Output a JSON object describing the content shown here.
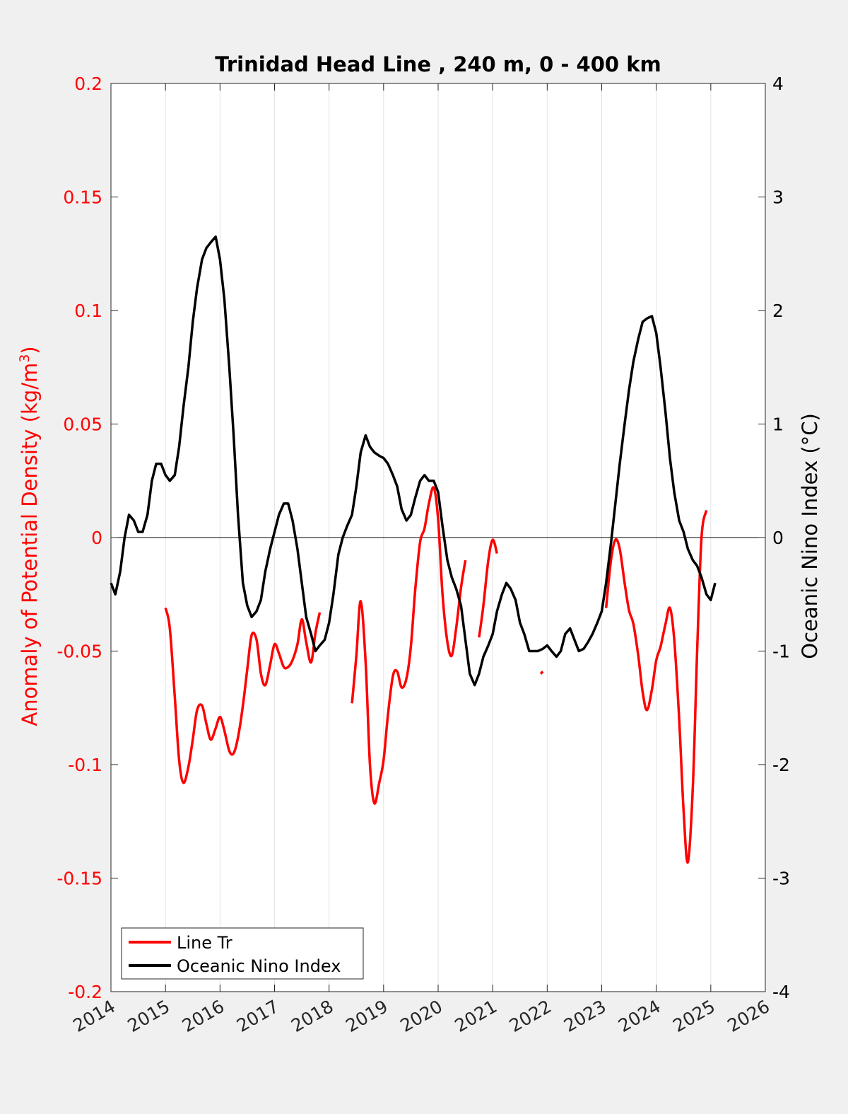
{
  "colors": {
    "left_axis": "#ff0000",
    "right_axis": "#000000",
    "line_tr": "#ff0000",
    "oni": "#000000",
    "grid": "#e3e3e3",
    "figure_background": "#f0f0f0",
    "axes_background": "#ffffff"
  },
  "chart_data": {
    "type": "line",
    "title": "Trinidad Head Line , 240 m, 0 - 400 km",
    "xlabel": "",
    "ylabel_left": "Anomaly of Potential Density (kg/m",
    "ylabel_left_sup": "3",
    "ylabel_left_close": ")",
    "ylabel_right": "Oceanic Nino Index (°C)",
    "xlim": [
      2014,
      2026
    ],
    "ylim_left": [
      -0.2,
      0.2
    ],
    "ylim_right": [
      -4,
      4
    ],
    "x_ticks": [
      2014,
      2015,
      2016,
      2017,
      2018,
      2019,
      2020,
      2021,
      2022,
      2023,
      2024,
      2025,
      2026
    ],
    "x_tick_labels": [
      "2014",
      "2015",
      "2016",
      "2017",
      "2018",
      "2019",
      "2020",
      "2021",
      "2022",
      "2023",
      "2024",
      "2025",
      "2026"
    ],
    "y_left_ticks": [
      0.2,
      0.15,
      0.1,
      0.05,
      0,
      -0.05,
      -0.1,
      -0.15,
      -0.2
    ],
    "y_left_tick_labels": [
      "0.2",
      "0.15",
      "0.1",
      "0.05",
      "0",
      "-0.05",
      "-0.1",
      "-0.15",
      "-0.2"
    ],
    "y_right_ticks": [
      4,
      3,
      2,
      1,
      0,
      -1,
      -2,
      -3,
      -4
    ],
    "y_right_tick_labels": [
      "4",
      "3",
      "2",
      "1",
      "0",
      "-1",
      "-2",
      "-3",
      "-4"
    ],
    "grid": "vertical",
    "zero_line": true,
    "legend_position": "bottom-left",
    "legend": [
      "Line Tr",
      "Oceanic Nino Index"
    ],
    "series": [
      {
        "name": "Line Tr",
        "axis": "left",
        "segments": [
          [
            [
              2015.0,
              -0.031
            ],
            [
              2015.08,
              -0.04
            ],
            [
              2015.17,
              -0.07
            ],
            [
              2015.25,
              -0.098
            ],
            [
              2015.33,
              -0.108
            ],
            [
              2015.42,
              -0.101
            ],
            [
              2015.5,
              -0.089
            ],
            [
              2015.58,
              -0.076
            ],
            [
              2015.67,
              -0.074
            ],
            [
              2015.75,
              -0.082
            ],
            [
              2015.83,
              -0.089
            ],
            [
              2015.92,
              -0.084
            ],
            [
              2016.0,
              -0.079
            ],
            [
              2016.08,
              -0.085
            ],
            [
              2016.17,
              -0.094
            ],
            [
              2016.25,
              -0.095
            ],
            [
              2016.33,
              -0.088
            ],
            [
              2016.42,
              -0.074
            ],
            [
              2016.5,
              -0.058
            ],
            [
              2016.58,
              -0.043
            ],
            [
              2016.67,
              -0.045
            ],
            [
              2016.75,
              -0.06
            ],
            [
              2016.83,
              -0.065
            ],
            [
              2016.92,
              -0.056
            ],
            [
              2017.0,
              -0.047
            ],
            [
              2017.08,
              -0.051
            ],
            [
              2017.17,
              -0.057
            ],
            [
              2017.25,
              -0.057
            ],
            [
              2017.33,
              -0.054
            ],
            [
              2017.42,
              -0.047
            ],
            [
              2017.5,
              -0.036
            ],
            [
              2017.58,
              -0.046
            ],
            [
              2017.67,
              -0.055
            ],
            [
              2017.75,
              -0.042
            ],
            [
              2017.83,
              -0.033
            ]
          ],
          [
            [
              2018.42,
              -0.073
            ],
            [
              2018.5,
              -0.052
            ],
            [
              2018.58,
              -0.028
            ],
            [
              2018.67,
              -0.055
            ],
            [
              2018.75,
              -0.1
            ],
            [
              2018.83,
              -0.117
            ],
            [
              2018.92,
              -0.108
            ],
            [
              2019.0,
              -0.098
            ],
            [
              2019.08,
              -0.078
            ],
            [
              2019.17,
              -0.061
            ],
            [
              2019.25,
              -0.059
            ],
            [
              2019.33,
              -0.066
            ],
            [
              2019.42,
              -0.062
            ],
            [
              2019.5,
              -0.048
            ],
            [
              2019.58,
              -0.023
            ],
            [
              2019.67,
              -0.002
            ],
            [
              2019.75,
              0.004
            ],
            [
              2019.83,
              0.015
            ],
            [
              2019.92,
              0.022
            ],
            [
              2020.0,
              0.008
            ],
            [
              2020.08,
              -0.025
            ],
            [
              2020.17,
              -0.046
            ],
            [
              2020.25,
              -0.052
            ],
            [
              2020.33,
              -0.04
            ],
            [
              2020.42,
              -0.022
            ],
            [
              2020.5,
              -0.01
            ]
          ],
          [
            [
              2020.75,
              -0.044
            ],
            [
              2020.83,
              -0.03
            ],
            [
              2020.92,
              -0.01
            ],
            [
              2021.0,
              -0.001
            ],
            [
              2021.08,
              -0.007
            ]
          ],
          [
            [
              2021.88,
              -0.06
            ],
            [
              2021.92,
              -0.059
            ]
          ],
          [
            [
              2023.08,
              -0.031
            ],
            [
              2023.17,
              -0.01
            ],
            [
              2023.25,
              -0.001
            ],
            [
              2023.33,
              -0.005
            ],
            [
              2023.42,
              -0.02
            ],
            [
              2023.5,
              -0.032
            ],
            [
              2023.58,
              -0.038
            ],
            [
              2023.67,
              -0.052
            ],
            [
              2023.75,
              -0.068
            ],
            [
              2023.83,
              -0.076
            ],
            [
              2023.92,
              -0.067
            ],
            [
              2024.0,
              -0.054
            ],
            [
              2024.08,
              -0.048
            ],
            [
              2024.17,
              -0.038
            ],
            [
              2024.25,
              -0.031
            ],
            [
              2024.33,
              -0.045
            ],
            [
              2024.42,
              -0.08
            ],
            [
              2024.5,
              -0.12
            ],
            [
              2024.58,
              -0.143
            ],
            [
              2024.67,
              -0.11
            ],
            [
              2024.75,
              -0.05
            ],
            [
              2024.83,
              0.0
            ],
            [
              2024.92,
              0.012
            ]
          ]
        ]
      },
      {
        "name": "Oceanic Nino Index",
        "axis": "right",
        "points": [
          [
            2014.0,
            -0.4
          ],
          [
            2014.08,
            -0.5
          ],
          [
            2014.17,
            -0.3
          ],
          [
            2014.25,
            0.0
          ],
          [
            2014.33,
            0.2
          ],
          [
            2014.42,
            0.15
          ],
          [
            2014.5,
            0.05
          ],
          [
            2014.58,
            0.05
          ],
          [
            2014.67,
            0.2
          ],
          [
            2014.75,
            0.5
          ],
          [
            2014.83,
            0.65
          ],
          [
            2014.92,
            0.65
          ],
          [
            2015.0,
            0.55
          ],
          [
            2015.08,
            0.5
          ],
          [
            2015.17,
            0.55
          ],
          [
            2015.25,
            0.8
          ],
          [
            2015.33,
            1.15
          ],
          [
            2015.42,
            1.5
          ],
          [
            2015.5,
            1.9
          ],
          [
            2015.58,
            2.2
          ],
          [
            2015.67,
            2.45
          ],
          [
            2015.75,
            2.55
          ],
          [
            2015.83,
            2.6
          ],
          [
            2015.92,
            2.65
          ],
          [
            2016.0,
            2.45
          ],
          [
            2016.08,
            2.1
          ],
          [
            2016.17,
            1.5
          ],
          [
            2016.25,
            0.9
          ],
          [
            2016.33,
            0.2
          ],
          [
            2016.42,
            -0.4
          ],
          [
            2016.5,
            -0.6
          ],
          [
            2016.58,
            -0.7
          ],
          [
            2016.67,
            -0.65
          ],
          [
            2016.75,
            -0.55
          ],
          [
            2016.83,
            -0.3
          ],
          [
            2016.92,
            -0.1
          ],
          [
            2017.0,
            0.05
          ],
          [
            2017.08,
            0.2
          ],
          [
            2017.17,
            0.3
          ],
          [
            2017.25,
            0.3
          ],
          [
            2017.33,
            0.15
          ],
          [
            2017.42,
            -0.1
          ],
          [
            2017.5,
            -0.4
          ],
          [
            2017.58,
            -0.7
          ],
          [
            2017.67,
            -0.85
          ],
          [
            2017.75,
            -1.0
          ],
          [
            2017.83,
            -0.95
          ],
          [
            2017.92,
            -0.9
          ],
          [
            2018.0,
            -0.75
          ],
          [
            2018.08,
            -0.5
          ],
          [
            2018.17,
            -0.15
          ],
          [
            2018.25,
            0.0
          ],
          [
            2018.33,
            0.1
          ],
          [
            2018.42,
            0.2
          ],
          [
            2018.5,
            0.45
          ],
          [
            2018.58,
            0.75
          ],
          [
            2018.67,
            0.9
          ],
          [
            2018.75,
            0.8
          ],
          [
            2018.83,
            0.75
          ],
          [
            2018.92,
            0.72
          ],
          [
            2019.0,
            0.7
          ],
          [
            2019.08,
            0.65
          ],
          [
            2019.17,
            0.55
          ],
          [
            2019.25,
            0.45
          ],
          [
            2019.33,
            0.25
          ],
          [
            2019.42,
            0.15
          ],
          [
            2019.5,
            0.2
          ],
          [
            2019.58,
            0.35
          ],
          [
            2019.67,
            0.5
          ],
          [
            2019.75,
            0.55
          ],
          [
            2019.83,
            0.5
          ],
          [
            2019.92,
            0.5
          ],
          [
            2020.0,
            0.4
          ],
          [
            2020.08,
            0.1
          ],
          [
            2020.17,
            -0.2
          ],
          [
            2020.25,
            -0.35
          ],
          [
            2020.33,
            -0.45
          ],
          [
            2020.42,
            -0.6
          ],
          [
            2020.5,
            -0.9
          ],
          [
            2020.58,
            -1.2
          ],
          [
            2020.67,
            -1.3
          ],
          [
            2020.75,
            -1.2
          ],
          [
            2020.83,
            -1.05
          ],
          [
            2020.92,
            -0.95
          ],
          [
            2021.0,
            -0.85
          ],
          [
            2021.08,
            -0.65
          ],
          [
            2021.17,
            -0.5
          ],
          [
            2021.25,
            -0.4
          ],
          [
            2021.33,
            -0.45
          ],
          [
            2021.42,
            -0.55
          ],
          [
            2021.5,
            -0.75
          ],
          [
            2021.58,
            -0.85
          ],
          [
            2021.67,
            -1.0
          ],
          [
            2021.75,
            -1.0
          ],
          [
            2021.83,
            -1.0
          ],
          [
            2021.92,
            -0.98
          ],
          [
            2022.0,
            -0.95
          ],
          [
            2022.08,
            -1.0
          ],
          [
            2022.17,
            -1.05
          ],
          [
            2022.25,
            -1.0
          ],
          [
            2022.33,
            -0.85
          ],
          [
            2022.42,
            -0.8
          ],
          [
            2022.5,
            -0.9
          ],
          [
            2022.58,
            -1.0
          ],
          [
            2022.67,
            -0.98
          ],
          [
            2022.75,
            -0.92
          ],
          [
            2022.83,
            -0.85
          ],
          [
            2022.92,
            -0.75
          ],
          [
            2023.0,
            -0.65
          ],
          [
            2023.08,
            -0.4
          ],
          [
            2023.17,
            -0.05
          ],
          [
            2023.25,
            0.3
          ],
          [
            2023.33,
            0.65
          ],
          [
            2023.42,
            1.0
          ],
          [
            2023.5,
            1.3
          ],
          [
            2023.58,
            1.55
          ],
          [
            2023.67,
            1.75
          ],
          [
            2023.75,
            1.9
          ],
          [
            2023.83,
            1.93
          ],
          [
            2023.92,
            1.95
          ],
          [
            2024.0,
            1.8
          ],
          [
            2024.08,
            1.5
          ],
          [
            2024.17,
            1.1
          ],
          [
            2024.25,
            0.7
          ],
          [
            2024.33,
            0.4
          ],
          [
            2024.42,
            0.15
          ],
          [
            2024.5,
            0.05
          ],
          [
            2024.58,
            -0.1
          ],
          [
            2024.67,
            -0.2
          ],
          [
            2024.75,
            -0.25
          ],
          [
            2024.83,
            -0.35
          ],
          [
            2024.92,
            -0.5
          ],
          [
            2025.0,
            -0.55
          ],
          [
            2025.08,
            -0.4
          ]
        ]
      }
    ]
  }
}
